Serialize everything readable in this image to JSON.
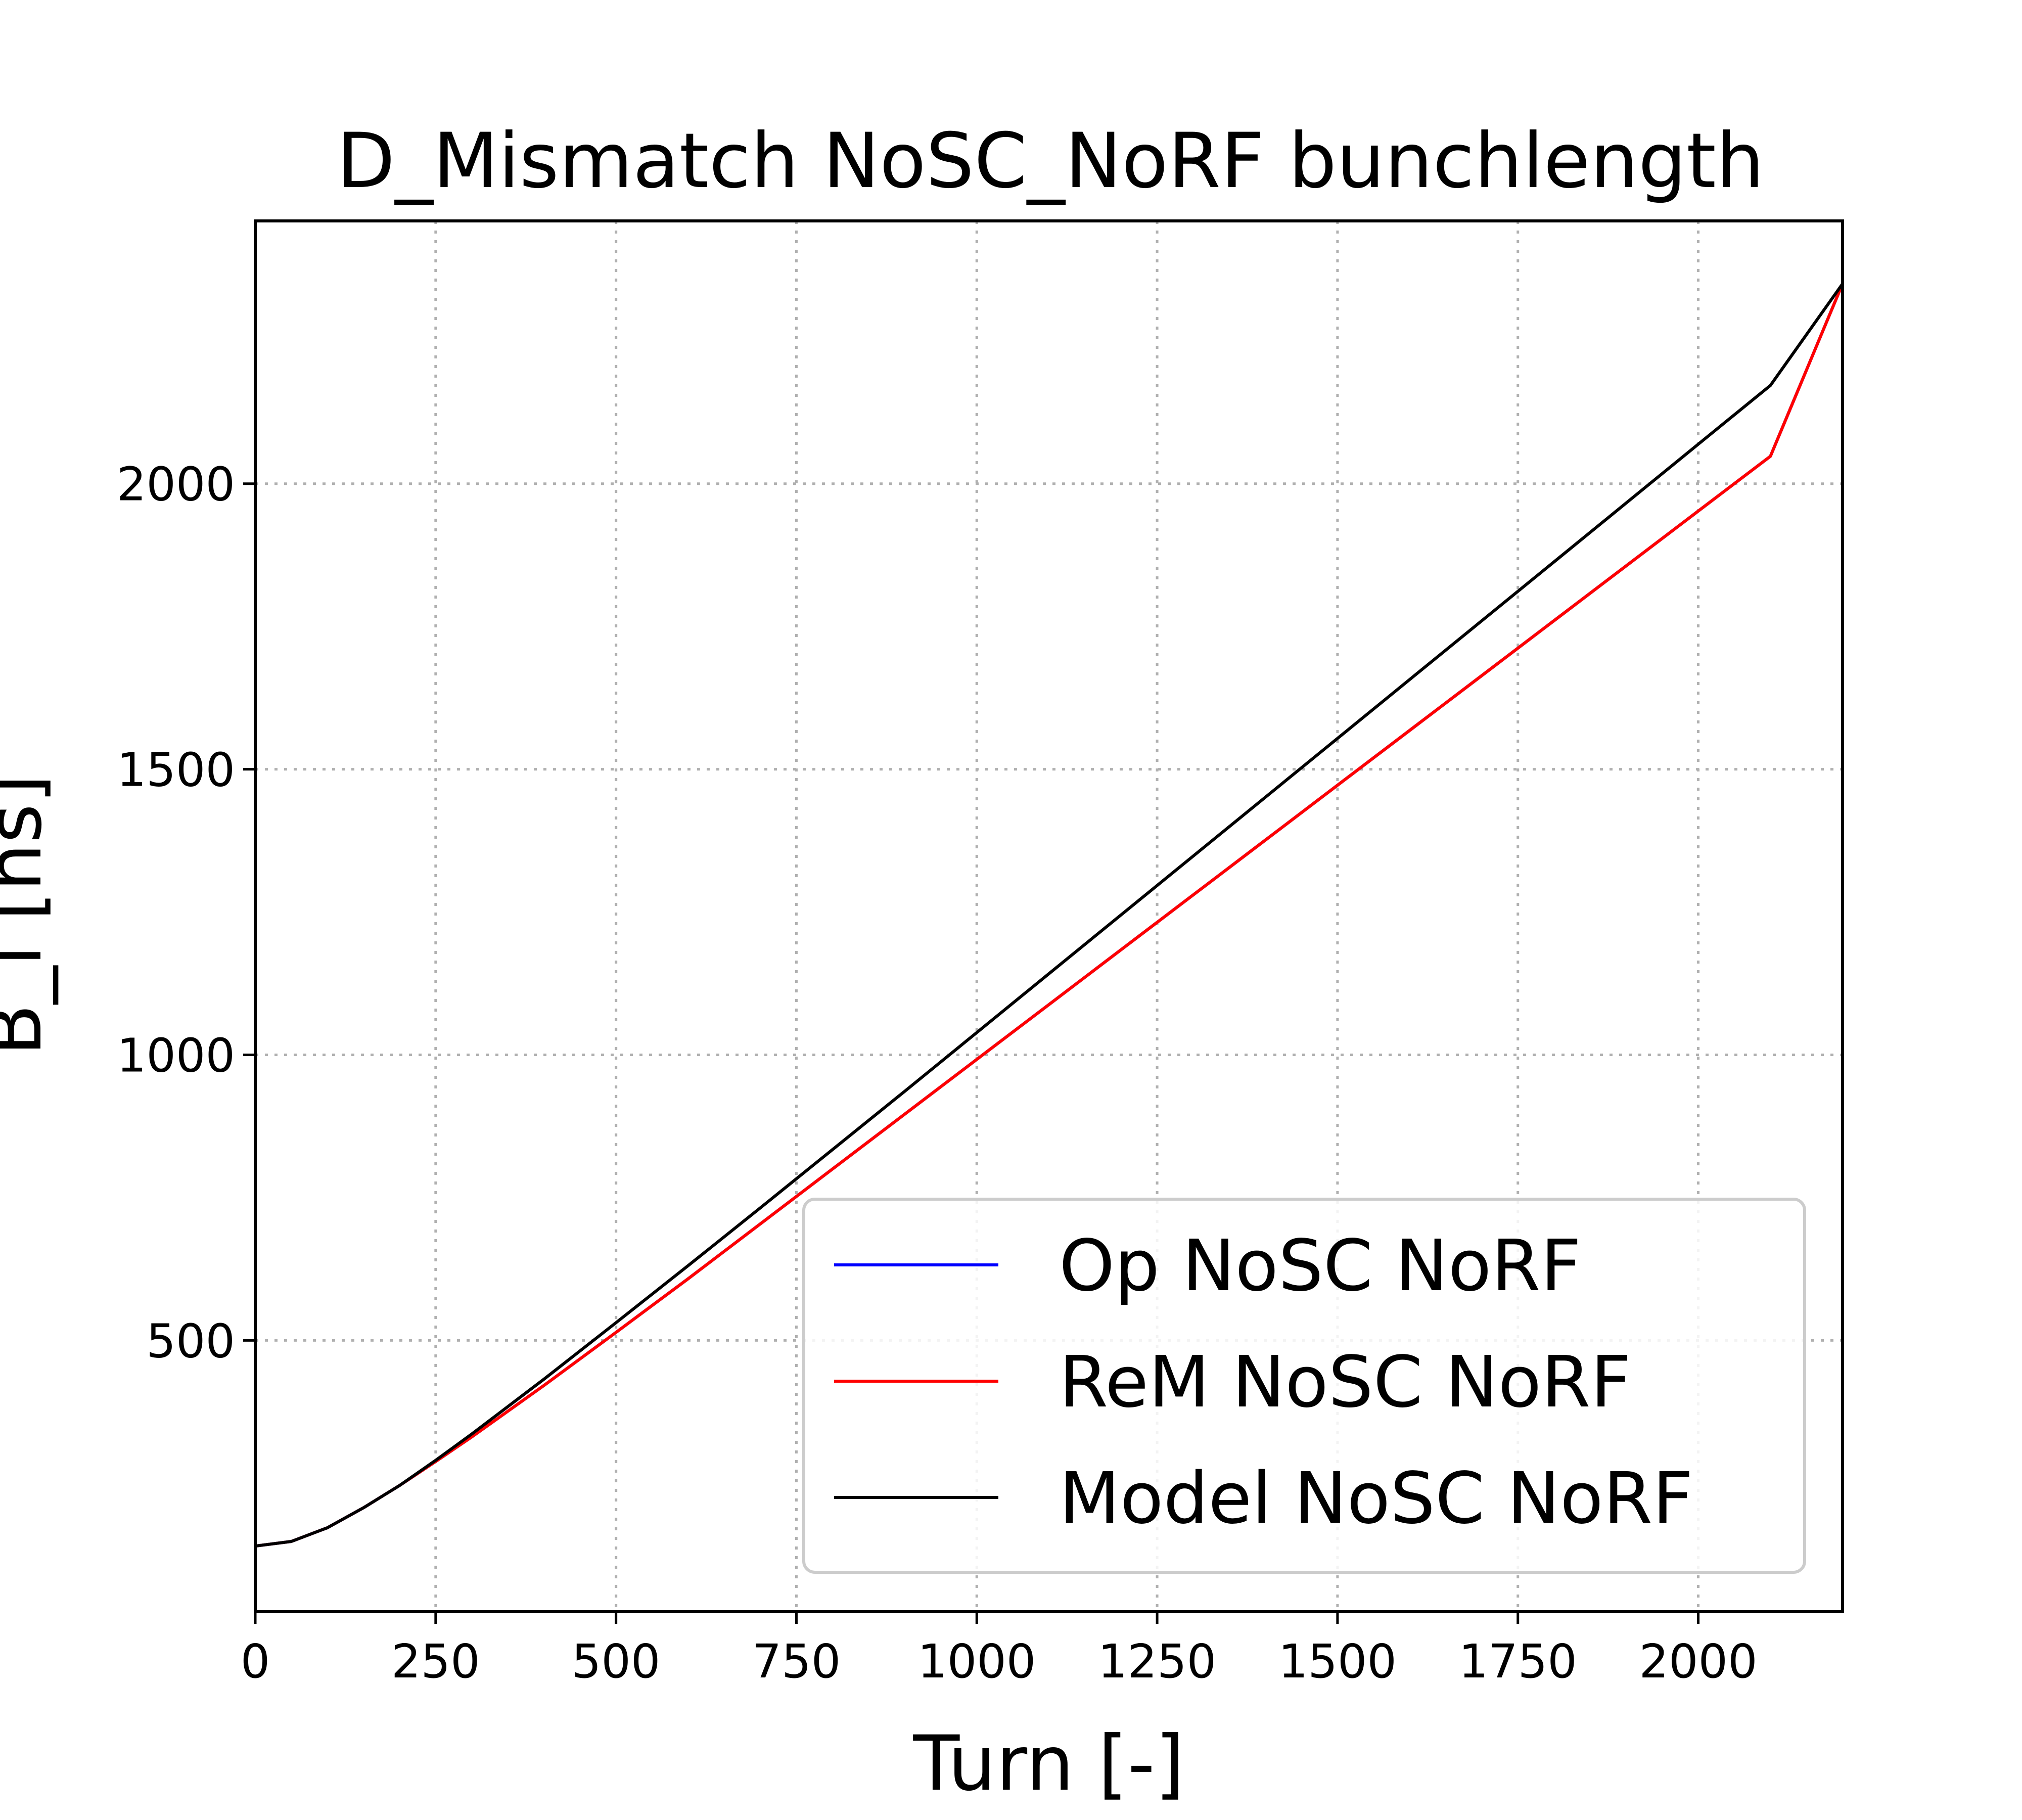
{
  "chart_data": {
    "type": "line",
    "title": "D_Mismatch NoSC_NoRF bunchlength",
    "xlabel": "Turn [-]",
    "ylabel": "B_l [ns]",
    "xlim": [
      0,
      2200
    ],
    "ylim": [
      25,
      2460
    ],
    "xticks": [
      0,
      250,
      500,
      750,
      1000,
      1250,
      1500,
      1750,
      2000
    ],
    "yticks": [
      500,
      1000,
      1500,
      2000
    ],
    "grid": true,
    "legend_position": "lower-right",
    "series": [
      {
        "name": "Op NoSC NoRF",
        "color": "#0000ff",
        "x": [
          0,
          50,
          100,
          150,
          200,
          250,
          300,
          400,
          500,
          600,
          700,
          800,
          900,
          1000,
          1100,
          1200,
          1300,
          1400,
          1500,
          1600,
          1700,
          1800,
          1900,
          2000,
          2100,
          2200
        ],
        "y": [
          140,
          148,
          172,
          207,
          246,
          288,
          331,
          421,
          514,
          608,
          704,
          800,
          896,
          992,
          1088,
          1184,
          1280,
          1376,
          1472,
          1568,
          1664,
          1760,
          1856,
          1952,
          2048,
          2350
        ]
      },
      {
        "name": "ReM NoSC NoRF",
        "color": "#ff0000",
        "x": [
          0,
          50,
          100,
          150,
          200,
          250,
          300,
          400,
          500,
          600,
          700,
          800,
          900,
          1000,
          1100,
          1200,
          1300,
          1400,
          1500,
          1600,
          1700,
          1800,
          1900,
          2000,
          2100,
          2200
        ],
        "y": [
          140,
          148,
          172,
          207,
          246,
          288,
          331,
          421,
          514,
          608,
          704,
          800,
          896,
          992,
          1088,
          1184,
          1280,
          1376,
          1472,
          1568,
          1664,
          1760,
          1856,
          1952,
          2048,
          2350
        ]
      },
      {
        "name": "Model NoSC NoRF",
        "color": "#000000",
        "x": [
          0,
          50,
          100,
          150,
          200,
          250,
          300,
          400,
          500,
          600,
          700,
          800,
          900,
          1000,
          1100,
          1200,
          1300,
          1400,
          1500,
          1600,
          1700,
          1800,
          1900,
          2000,
          2100,
          2200
        ],
        "y": [
          140,
          148,
          172,
          207,
          246,
          290,
          336,
          432,
          531,
          631,
          732,
          834,
          936,
          1039,
          1142,
          1245,
          1348,
          1451,
          1554,
          1657,
          1760,
          1863,
          1966,
          2069,
          2172,
          2350
        ]
      }
    ]
  }
}
